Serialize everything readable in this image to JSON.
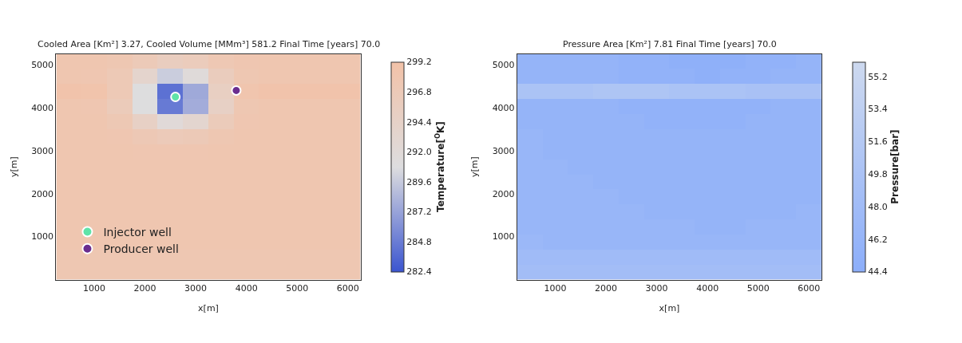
{
  "chart_data": [
    {
      "type": "heatmap",
      "title": "Cooled Area [Km²] 3.27, Cooled Volume [MMm³] 581.2 Final Time [years] 70.0",
      "xlabel": "x[m]",
      "ylabel": "y[m]",
      "clabel": "Temperature[$^{O}$K]",
      "x": [
        500,
        1000,
        1500,
        2000,
        2500,
        3000,
        3500,
        4000,
        4500,
        5000,
        5500,
        6000
      ],
      "y": [
        5075,
        4725,
        4375,
        4025,
        3675,
        3325,
        2975,
        2625,
        2275,
        1925,
        1575,
        1225,
        875,
        525,
        175
      ],
      "cells": [
        [
          298.0,
          298.0,
          297.7,
          296.8,
          295.7,
          296.2,
          297.4,
          297.9,
          298.0,
          298.0,
          298.0,
          298.0
        ],
        [
          298.0,
          297.9,
          297.0,
          293.6,
          289.8,
          291.7,
          296.0,
          297.7,
          298.0,
          298.0,
          298.0,
          298.0
        ],
        [
          298.8,
          298.6,
          297.1,
          290.9,
          284.1,
          287.6,
          295.3,
          298.3,
          298.8,
          298.8,
          298.8,
          298.8
        ],
        [
          298.0,
          297.9,
          296.4,
          290.9,
          284.7,
          287.8,
          294.8,
          297.6,
          298.0,
          298.0,
          298.0,
          298.0
        ],
        [
          298.0,
          298.0,
          297.3,
          294.7,
          291.9,
          293.3,
          296.5,
          297.8,
          298.0,
          298.0,
          298.0,
          298.0
        ],
        [
          298.0,
          298.0,
          297.8,
          297.2,
          296.6,
          296.9,
          297.7,
          298.0,
          298.0,
          298.0,
          298.0,
          298.0
        ],
        [
          298.0,
          298.0,
          298.0,
          297.9,
          297.8,
          297.9,
          298.0,
          298.0,
          298.0,
          298.0,
          298.0,
          298.0
        ],
        [
          298.0,
          298.0,
          298.0,
          298.0,
          298.0,
          298.0,
          298.0,
          298.0,
          298.0,
          298.0,
          298.0,
          298.0
        ],
        [
          298.0,
          298.0,
          298.0,
          298.0,
          298.0,
          298.0,
          298.0,
          298.0,
          298.0,
          298.0,
          298.0,
          298.0
        ],
        [
          298.0,
          298.0,
          298.0,
          298.0,
          298.0,
          298.0,
          298.0,
          298.0,
          298.0,
          298.0,
          298.0,
          298.0
        ],
        [
          298.0,
          298.0,
          298.0,
          298.0,
          298.0,
          298.0,
          298.0,
          298.0,
          298.0,
          298.0,
          298.0,
          298.0
        ],
        [
          298.0,
          298.0,
          298.0,
          298.0,
          298.0,
          298.0,
          298.0,
          298.0,
          298.0,
          298.0,
          298.0,
          298.0
        ],
        [
          298.0,
          298.0,
          298.0,
          298.0,
          298.0,
          298.0,
          298.0,
          298.0,
          298.0,
          298.0,
          298.0,
          298.0
        ],
        [
          297.6,
          297.6,
          297.6,
          297.6,
          297.6,
          297.6,
          297.6,
          297.6,
          297.6,
          297.6,
          297.6,
          297.6
        ],
        [
          297.6,
          297.6,
          297.6,
          297.6,
          297.6,
          297.6,
          297.6,
          297.6,
          297.6,
          297.6,
          297.6,
          297.6
        ]
      ],
      "colors": [
        "#3b55d0",
        "#dddddf",
        "#f2c2a8"
      ],
      "clim": [
        282.4,
        299.2
      ],
      "cticks": [
        282.4,
        284.8,
        287.2,
        289.6,
        {
          "value": 292,
          "label": "292.0"
        },
        294.4,
        296.8,
        299.2
      ],
      "xlim": [
        250,
        6250
      ],
      "xticks": [
        1000,
        2000,
        3000,
        4000,
        5000,
        6000
      ],
      "ylim": [
        0,
        5250
      ],
      "yticks": [
        1000,
        2000,
        3000,
        4000,
        5000
      ],
      "series": [
        {
          "type": "scatter",
          "name": "Injector well",
          "color": "#5fe3a8",
          "x": [
            2600
          ],
          "values": [
            4250
          ]
        },
        {
          "type": "scatter",
          "name": "Producer well",
          "color": "#6a2d8f",
          "x": [
            3800
          ],
          "values": [
            4400
          ]
        }
      ],
      "marker": "circle",
      "legend": "bottom left",
      "grid": false
    },
    {
      "type": "heatmap",
      "title": "Pressure Area [Km²] 7.81 Final Time [years] 70.0",
      "xlabel": "x[m]",
      "ylabel": "y[m]",
      "clabel": "Pressure[bar]",
      "x": [
        500,
        1000,
        1500,
        2000,
        2500,
        3000,
        3500,
        4000,
        4500,
        5000,
        5500,
        6000
      ],
      "y": [
        5075,
        4725,
        4375,
        4025,
        3675,
        3325,
        2975,
        2625,
        2275,
        1925,
        1575,
        1225,
        875,
        525,
        175
      ],
      "cells": [
        [
          46.0,
          46.0,
          46.0,
          46.0,
          45.5,
          45.5,
          45.0,
          45.0,
          45.0,
          45.5,
          45.5,
          46.0
        ],
        [
          46.0,
          46.0,
          46.0,
          46.0,
          45.5,
          45.5,
          45.5,
          45.0,
          45.5,
          45.5,
          46.0,
          46.0
        ],
        [
          50.0,
          50.0,
          50.0,
          50.5,
          50.5,
          50.5,
          50.0,
          50.0,
          50.0,
          49.5,
          49.5,
          49.5
        ],
        [
          46.0,
          46.0,
          46.0,
          46.0,
          45.5,
          45.5,
          45.5,
          45.5,
          45.5,
          45.5,
          46.0,
          46.0
        ],
        [
          46.0,
          46.0,
          46.0,
          46.0,
          46.0,
          45.5,
          45.5,
          45.5,
          45.5,
          46.0,
          46.0,
          46.0
        ],
        [
          46.5,
          46.0,
          46.0,
          46.0,
          46.0,
          46.0,
          46.0,
          46.0,
          46.0,
          46.0,
          46.0,
          46.0
        ],
        [
          46.5,
          46.0,
          46.0,
          46.0,
          46.0,
          46.0,
          46.0,
          46.0,
          46.0,
          46.0,
          46.0,
          46.0
        ],
        [
          46.5,
          46.5,
          46.0,
          46.0,
          46.0,
          46.0,
          46.0,
          46.0,
          46.0,
          46.0,
          46.0,
          46.0
        ],
        [
          46.5,
          46.5,
          46.5,
          46.0,
          46.0,
          46.0,
          46.0,
          46.0,
          46.0,
          46.0,
          46.0,
          46.0
        ],
        [
          46.5,
          46.5,
          46.5,
          46.5,
          46.0,
          46.0,
          46.0,
          46.0,
          46.0,
          46.0,
          46.0,
          46.0
        ],
        [
          46.5,
          46.5,
          46.5,
          46.5,
          46.5,
          46.0,
          46.0,
          46.0,
          46.0,
          46.0,
          46.0,
          46.5
        ],
        [
          46.5,
          46.5,
          46.5,
          46.5,
          46.5,
          46.5,
          46.5,
          46.0,
          46.0,
          46.5,
          46.5,
          46.5
        ],
        [
          47.0,
          46.5,
          46.5,
          46.5,
          46.5,
          46.5,
          46.5,
          46.5,
          46.5,
          46.5,
          46.5,
          46.5
        ],
        [
          48.0,
          48.0,
          48.0,
          48.0,
          48.0,
          48.0,
          48.0,
          48.0,
          48.0,
          48.0,
          48.0,
          48.0
        ],
        [
          48.5,
          48.5,
          48.5,
          48.5,
          48.5,
          48.5,
          48.5,
          48.5,
          48.5,
          48.5,
          48.5,
          48.5
        ]
      ],
      "colors": [
        "#8caefa",
        "#cdd9ef"
      ],
      "clim": [
        44.4,
        56.0
      ],
      "cticks": [
        44.4,
        46.2,
        {
          "value": 48,
          "label": "48.0"
        },
        49.8,
        51.6,
        53.4,
        55.2
      ],
      "xlim": [
        250,
        6250
      ],
      "xticks": [
        1000,
        2000,
        3000,
        4000,
        5000,
        6000
      ],
      "ylim": [
        0,
        5250
      ],
      "yticks": [
        1000,
        2000,
        3000,
        4000,
        5000
      ],
      "grid": false
    }
  ]
}
